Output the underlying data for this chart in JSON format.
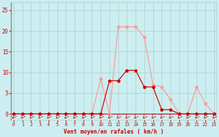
{
  "x": [
    0,
    1,
    2,
    3,
    4,
    5,
    6,
    7,
    8,
    9,
    10,
    11,
    12,
    13,
    14,
    15,
    16,
    17,
    18,
    19,
    20,
    21,
    22,
    23
  ],
  "light_red": [
    0,
    0,
    0,
    0,
    0,
    0,
    0,
    0,
    0,
    0,
    8.5,
    0,
    21,
    21,
    21,
    18.5,
    7,
    6.5,
    3.5,
    0,
    0,
    6.5,
    2.5,
    0
  ],
  "dark_red": [
    0,
    0,
    0,
    0,
    0,
    0,
    0,
    0,
    0,
    0,
    0,
    8,
    8,
    10.5,
    10.5,
    6.5,
    6.5,
    1,
    1,
    0,
    0,
    0,
    0,
    0
  ],
  "bg_color": "#cceef0",
  "grid_color": "#aacccc",
  "light_red_color": "#ff9999",
  "dark_red_color": "#cc0000",
  "xlabel": "Vent moyen/en rafales ( km/h )",
  "tick_color": "#cc0000",
  "yticks": [
    0,
    5,
    10,
    15,
    20,
    25
  ],
  "ylim": [
    -1.5,
    27
  ],
  "xlim": [
    -0.3,
    23.3
  ]
}
